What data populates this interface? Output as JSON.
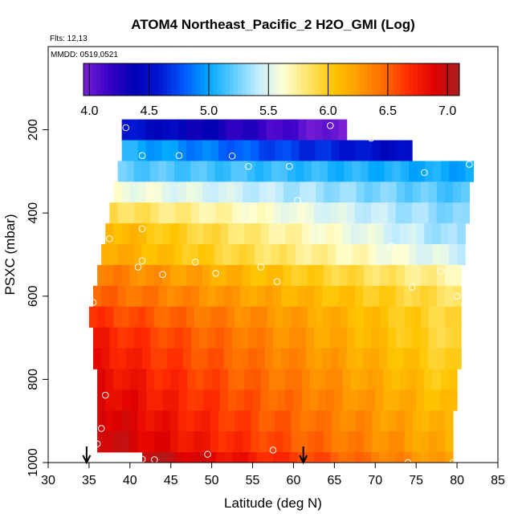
{
  "header": {
    "title": "ATOM4 Northeast_Pacific_2 H2O_GMI (Log)",
    "flights": "Flts: 12,13",
    "dates": "MMDD: 0519,0521"
  },
  "colors": {
    "scale": [
      "#7a1fd6",
      "#3a00c8",
      "#0000b4",
      "#0016d2",
      "#0058ff",
      "#00a8ff",
      "#62ccff",
      "#c8eeff",
      "#ffffd0",
      "#ffe466",
      "#ffc400",
      "#ff9a00",
      "#ff6a00",
      "#ff2a00",
      "#e00000",
      "#a81e1e"
    ],
    "obs_marker": "#ffffff",
    "arrow": "#000000"
  },
  "chart_data": {
    "type": "heatmap",
    "title": "ATOM4 Northeast_Pacific_2 H2O_GMI (Log)",
    "xlabel": "Latitude (deg N)",
    "ylabel": "PSXC (mbar)",
    "xlim": [
      30,
      85
    ],
    "ylim": [
      1000,
      0
    ],
    "xticks": [
      "30",
      "35",
      "40",
      "45",
      "50",
      "55",
      "60",
      "65",
      "70",
      "75",
      "80",
      "85"
    ],
    "yticks": [
      "200",
      "400",
      "600",
      "800",
      "1000"
    ],
    "colorbar": {
      "range": [
        3.95,
        7.1
      ],
      "ticks": [
        "4.0",
        "4.5",
        "5.0",
        "5.5",
        "6.0",
        "6.5",
        "7.0"
      ]
    },
    "rows": [
      {
        "p_top": 175,
        "p_bot": 225,
        "lat_start": 39,
        "lat_end": 66.5,
        "v_start": 4.55,
        "v_end": 3.95
      },
      {
        "p_top": 225,
        "p_bot": 275,
        "lat_start": 39,
        "lat_end": 74.5,
        "v_start": 5.05,
        "v_end": 4.45
      },
      {
        "p_top": 275,
        "p_bot": 325,
        "lat_start": 38.5,
        "lat_end": 82,
        "v_start": 5.2,
        "v_end": 5.0
      },
      {
        "p_top": 325,
        "p_bot": 375,
        "lat_start": 38,
        "lat_end": 81.5,
        "v_start": 5.6,
        "v_end": 5.15
      },
      {
        "p_top": 375,
        "p_bot": 425,
        "lat_start": 37.5,
        "lat_end": 81.5,
        "v_start": 5.9,
        "v_end": 5.25
      },
      {
        "p_top": 425,
        "p_bot": 475,
        "lat_start": 37,
        "lat_end": 81,
        "v_start": 6.15,
        "v_end": 5.3
      },
      {
        "p_top": 475,
        "p_bot": 525,
        "lat_start": 36.5,
        "lat_end": 81,
        "v_start": 6.2,
        "v_end": 5.45
      },
      {
        "p_top": 525,
        "p_bot": 575,
        "lat_start": 36,
        "lat_end": 80.5,
        "v_start": 6.4,
        "v_end": 5.7
      },
      {
        "p_top": 575,
        "p_bot": 625,
        "lat_start": 35.5,
        "lat_end": 80.5,
        "v_start": 6.5,
        "v_end": 5.85
      },
      {
        "p_top": 625,
        "p_bot": 675,
        "lat_start": 35,
        "lat_end": 80.5,
        "v_start": 6.65,
        "v_end": 5.9
      },
      {
        "p_top": 675,
        "p_bot": 725,
        "lat_start": 35.5,
        "lat_end": 80.5,
        "v_start": 6.75,
        "v_end": 5.9
      },
      {
        "p_top": 725,
        "p_bot": 775,
        "lat_start": 35.5,
        "lat_end": 80.5,
        "v_start": 6.8,
        "v_end": 5.95
      },
      {
        "p_top": 775,
        "p_bot": 825,
        "lat_start": 36,
        "lat_end": 80,
        "v_start": 6.85,
        "v_end": 6.0
      },
      {
        "p_top": 825,
        "p_bot": 875,
        "lat_start": 36,
        "lat_end": 80,
        "v_start": 6.9,
        "v_end": 6.05
      },
      {
        "p_top": 875,
        "p_bot": 925,
        "lat_start": 36,
        "lat_end": 79.5,
        "v_start": 6.95,
        "v_end": 6.1
      },
      {
        "p_top": 925,
        "p_bot": 975,
        "lat_start": 36,
        "lat_end": 79.5,
        "v_start": 7.0,
        "v_end": 6.15
      },
      {
        "p_top": 975,
        "p_bot": 1010,
        "lat_start": 41.5,
        "lat_end": 79.5,
        "v_start": 7.05,
        "v_end": 6.2
      }
    ],
    "observations": [
      {
        "lat": 39.5,
        "p": 195
      },
      {
        "lat": 64.5,
        "p": 190
      },
      {
        "lat": 67,
        "p": 188
      },
      {
        "lat": 69.5,
        "p": 220
      },
      {
        "lat": 41.5,
        "p": 262
      },
      {
        "lat": 46,
        "p": 262
      },
      {
        "lat": 52.5,
        "p": 263
      },
      {
        "lat": 54.5,
        "p": 288
      },
      {
        "lat": 59.5,
        "p": 288
      },
      {
        "lat": 76,
        "p": 303
      },
      {
        "lat": 81.5,
        "p": 283
      },
      {
        "lat": 60.5,
        "p": 370
      },
      {
        "lat": 41.5,
        "p": 438
      },
      {
        "lat": 37.5,
        "p": 462
      },
      {
        "lat": 72,
        "p": 480
      },
      {
        "lat": 41.5,
        "p": 515
      },
      {
        "lat": 41,
        "p": 530
      },
      {
        "lat": 48,
        "p": 518
      },
      {
        "lat": 44,
        "p": 548
      },
      {
        "lat": 50.5,
        "p": 545
      },
      {
        "lat": 56,
        "p": 530
      },
      {
        "lat": 58,
        "p": 565
      },
      {
        "lat": 78,
        "p": 540
      },
      {
        "lat": 74.5,
        "p": 578
      },
      {
        "lat": 80,
        "p": 600
      },
      {
        "lat": 35.5,
        "p": 615
      },
      {
        "lat": 37,
        "p": 838
      },
      {
        "lat": 36.5,
        "p": 918
      },
      {
        "lat": 36,
        "p": 955
      },
      {
        "lat": 41.5,
        "p": 992
      },
      {
        "lat": 43,
        "p": 993
      },
      {
        "lat": 49.5,
        "p": 980
      },
      {
        "lat": 57.5,
        "p": 970
      },
      {
        "lat": 74,
        "p": 1000
      },
      {
        "lat": 79.5,
        "p": 1000
      }
    ],
    "arrows": [
      {
        "lat": 34.7
      },
      {
        "lat": 61.2
      }
    ]
  }
}
